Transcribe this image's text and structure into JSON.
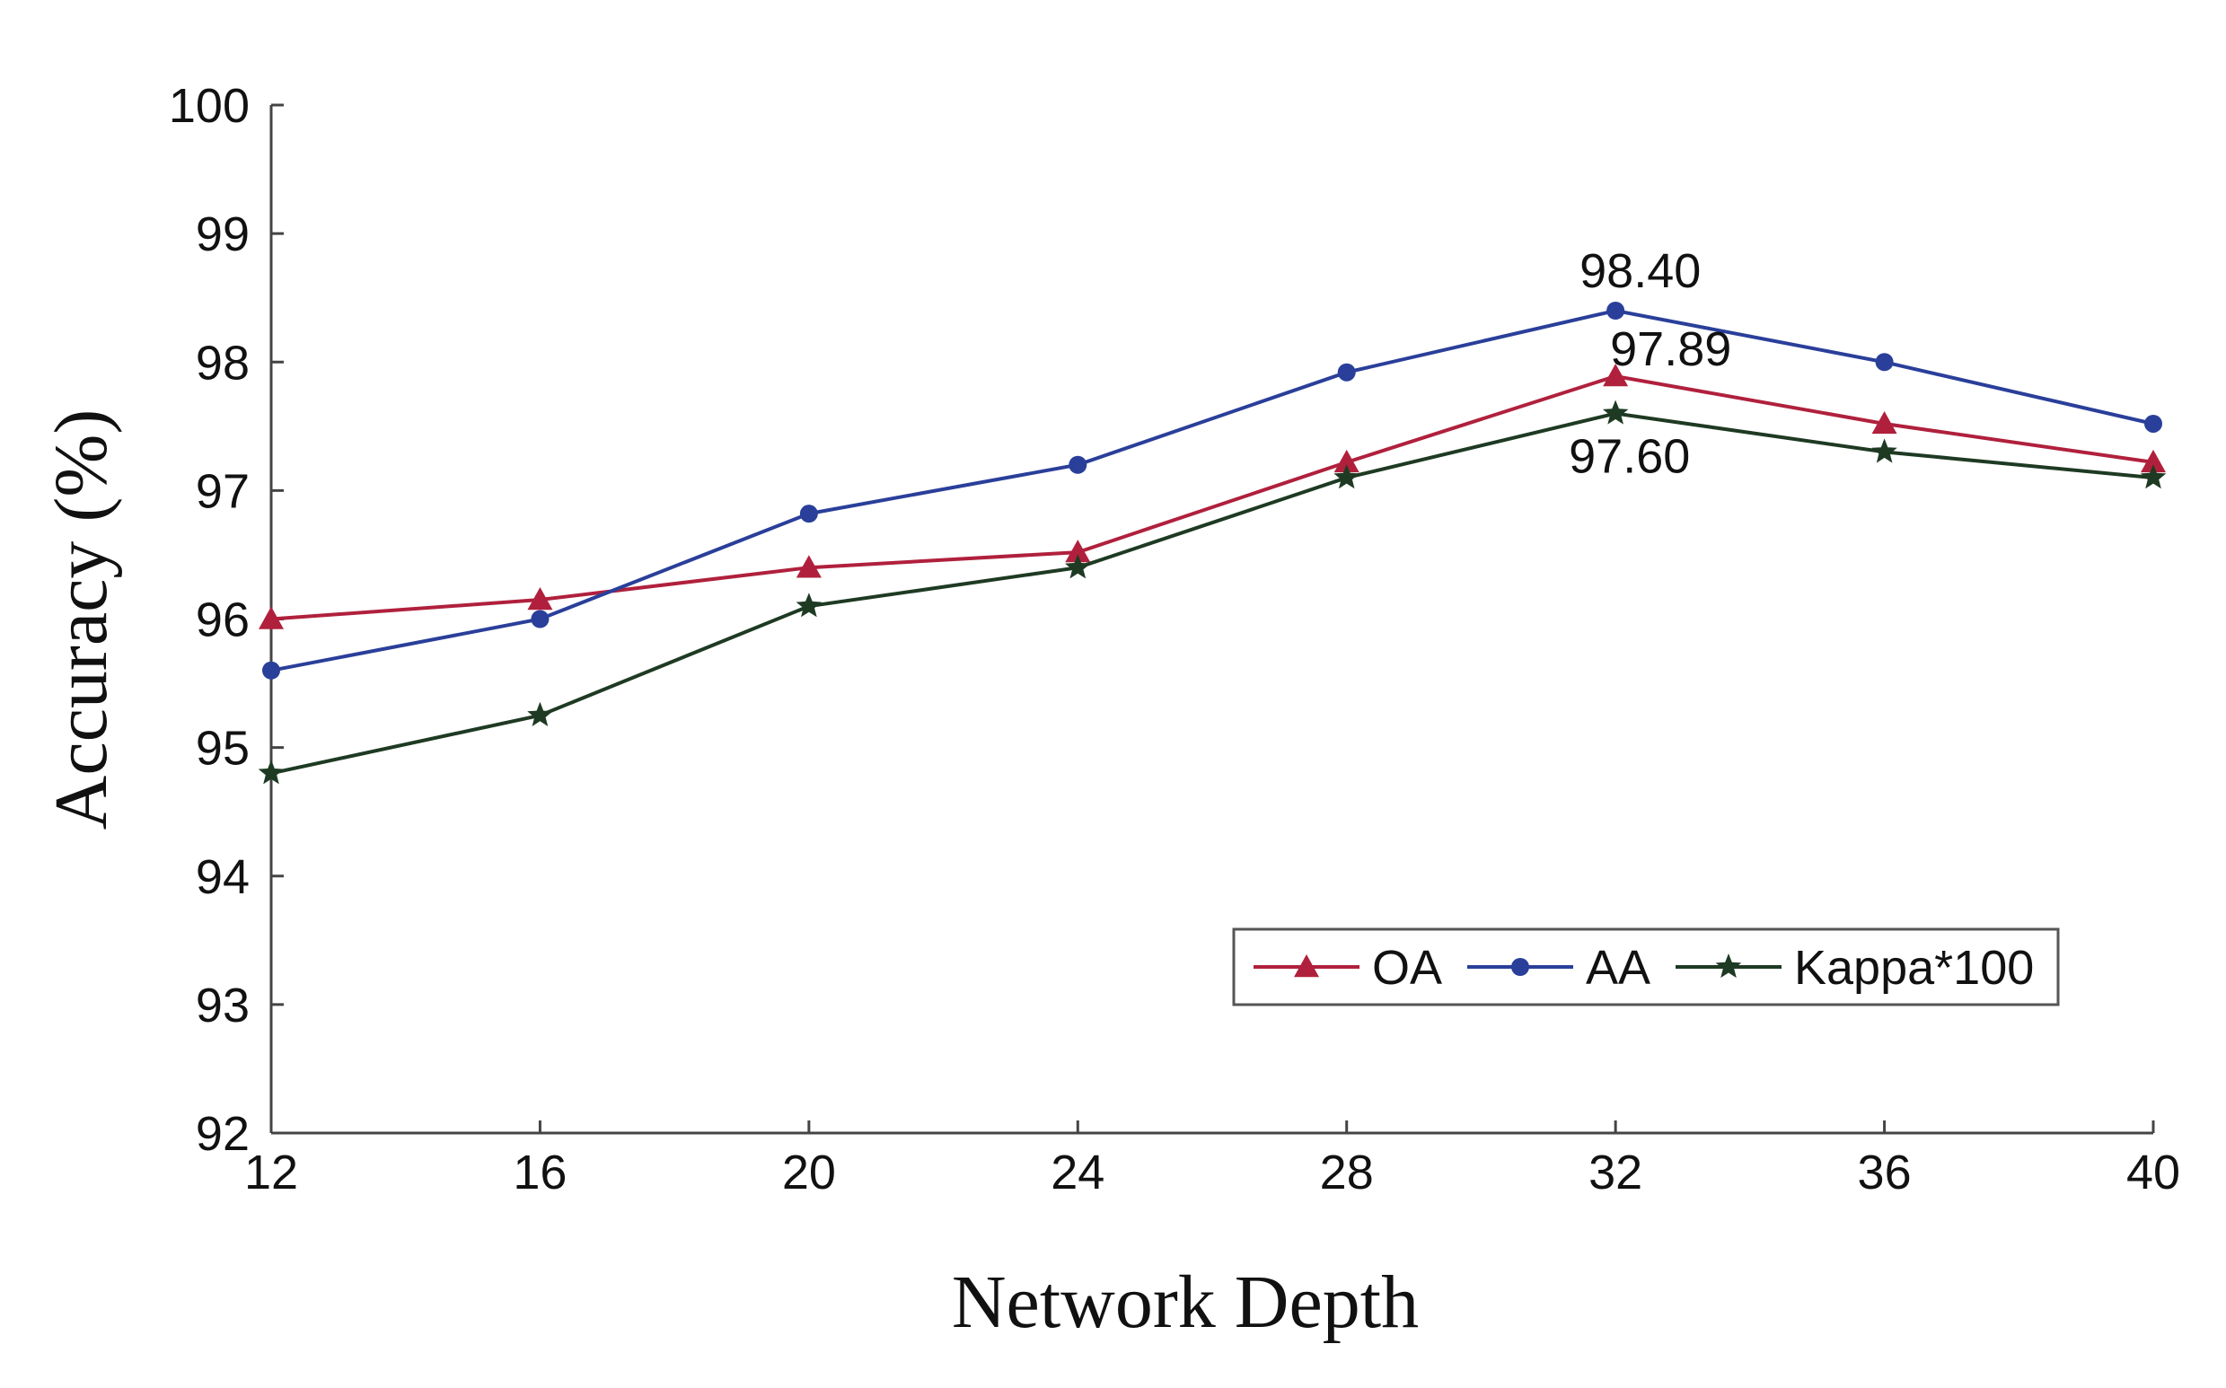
{
  "chart_data": {
    "type": "line",
    "x": [
      12,
      16,
      20,
      24,
      28,
      32,
      36,
      40
    ],
    "xticks": [
      "12",
      "16",
      "20",
      "24",
      "28",
      "32",
      "36",
      "40"
    ],
    "yticks": [
      "92",
      "93",
      "94",
      "95",
      "96",
      "97",
      "98",
      "99",
      "100"
    ],
    "xlim": [
      12,
      40
    ],
    "ylim": [
      92,
      100
    ],
    "xlabel": "Network Depth",
    "ylabel": "Accuracy (%)",
    "grid": false,
    "legend_position": "lower-right",
    "series": [
      {
        "name": "OA",
        "marker": "triangle",
        "color": "#b0203c",
        "values": [
          96.0,
          96.15,
          96.4,
          96.52,
          97.22,
          97.89,
          97.52,
          97.22
        ]
      },
      {
        "name": "AA",
        "marker": "circle",
        "color": "#2a3f9a",
        "values": [
          95.6,
          96.0,
          96.82,
          97.2,
          97.92,
          98.4,
          98.0,
          97.52
        ]
      },
      {
        "name": "Kappa*100",
        "marker": "star",
        "color": "#1e3a23",
        "values": [
          94.8,
          95.25,
          96.1,
          96.4,
          97.1,
          97.6,
          97.3,
          97.1
        ]
      }
    ],
    "annotations": [
      {
        "text": "98.40",
        "series": "AA",
        "x": 32,
        "y": 98.4
      },
      {
        "text": "97.89",
        "series": "OA",
        "x": 32,
        "y": 97.89
      },
      {
        "text": "97.60",
        "series": "Kappa*100",
        "x": 32,
        "y": 97.6
      }
    ]
  }
}
